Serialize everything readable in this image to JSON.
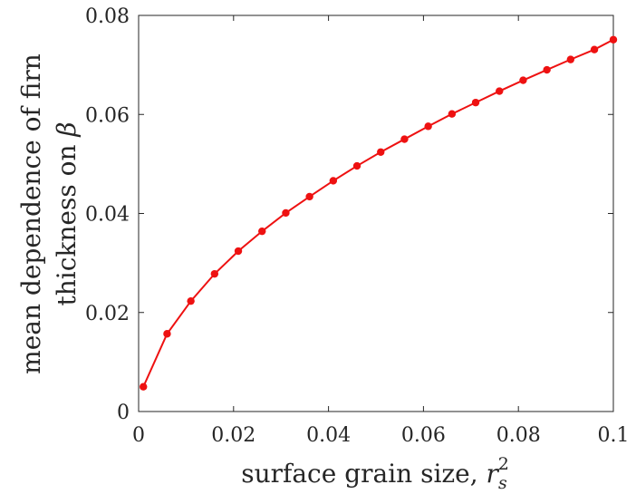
{
  "chart_data": {
    "type": "line",
    "title": "",
    "xlabel_text": "surface grain size, ",
    "xlabel_var": "r",
    "xlabel_sub": "s",
    "xlabel_sup": "2",
    "ylabel_line1": "mean dependence of firn",
    "ylabel_line2_text": "thickness on ",
    "ylabel_line2_var": "β",
    "xlim": [
      0,
      0.1
    ],
    "ylim": [
      0,
      0.08
    ],
    "x_ticks": [
      0,
      0.02,
      0.04,
      0.06,
      0.08,
      0.1
    ],
    "x_tick_labels": [
      "0",
      "0.02",
      "0.04",
      "0.06",
      "0.08",
      "0.1"
    ],
    "y_ticks": [
      0,
      0.02,
      0.04,
      0.06,
      0.08
    ],
    "y_tick_labels": [
      "0",
      "0.02",
      "0.04",
      "0.06",
      "0.08"
    ],
    "grid": false,
    "series": [
      {
        "color": "#ee1111",
        "x": [
          0.001,
          0.006,
          0.011,
          0.016,
          0.021,
          0.026,
          0.031,
          0.036,
          0.041,
          0.046,
          0.051,
          0.056,
          0.061,
          0.066,
          0.071,
          0.076,
          0.081,
          0.086,
          0.091,
          0.096,
          0.1
        ],
        "y": [
          0.005,
          0.0157,
          0.0223,
          0.0278,
          0.0324,
          0.0364,
          0.0401,
          0.0434,
          0.0466,
          0.0496,
          0.0524,
          0.055,
          0.0576,
          0.0601,
          0.0624,
          0.0647,
          0.0669,
          0.069,
          0.0711,
          0.0731,
          0.0751
        ]
      }
    ]
  }
}
